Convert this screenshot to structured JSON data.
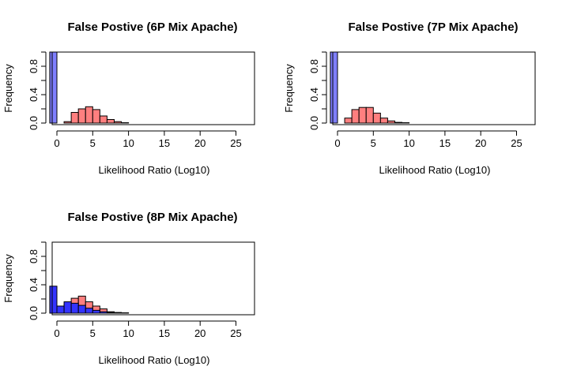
{
  "chart_data": [
    {
      "type": "bar",
      "title": "False Postive (6P Mix Apache)",
      "xlabel": "Likelihood Ratio (Log10)",
      "ylabel": "Frequency",
      "xlim": [
        -1,
        25
      ],
      "ylim": [
        0,
        1
      ],
      "xticks": [
        "0",
        "5",
        "10",
        "15",
        "20",
        "25"
      ],
      "yticks": [
        "0.0",
        "0.4",
        "0.8"
      ],
      "bin_width": 1,
      "series": [
        {
          "color": "#7f7fff",
          "bins": [
            {
              "x0": -1,
              "value": 1.0
            }
          ]
        },
        {
          "color": "#ff7f7f",
          "bins": [
            {
              "x0": 1,
              "value": 0.02
            },
            {
              "x0": 2,
              "value": 0.15
            },
            {
              "x0": 3,
              "value": 0.2
            },
            {
              "x0": 4,
              "value": 0.23
            },
            {
              "x0": 5,
              "value": 0.19
            },
            {
              "x0": 6,
              "value": 0.1
            },
            {
              "x0": 7,
              "value": 0.05
            },
            {
              "x0": 8,
              "value": 0.02
            },
            {
              "x0": 9,
              "value": 0.005
            },
            {
              "x0": 10,
              "value": 0
            },
            {
              "x0": 11,
              "value": 0
            },
            {
              "x0": 12,
              "value": 0
            },
            {
              "x0": 13,
              "value": 0
            },
            {
              "x0": 14,
              "value": 0
            },
            {
              "x0": 15,
              "value": 0
            },
            {
              "x0": 16,
              "value": 0
            },
            {
              "x0": 17,
              "value": 0
            },
            {
              "x0": 18,
              "value": 0
            },
            {
              "x0": 19,
              "value": 0
            },
            {
              "x0": 20,
              "value": 0
            },
            {
              "x0": 21,
              "value": 0
            },
            {
              "x0": 22,
              "value": 0
            },
            {
              "x0": 23,
              "value": 0
            },
            {
              "x0": 24,
              "value": 0
            }
          ]
        }
      ]
    },
    {
      "type": "bar",
      "title": "False Postive (7P Mix Apache)",
      "xlabel": "Likelihood Ratio (Log10)",
      "ylabel": "Frequency",
      "xlim": [
        -1,
        25
      ],
      "ylim": [
        0,
        1
      ],
      "xticks": [
        "0",
        "5",
        "10",
        "15",
        "20",
        "25"
      ],
      "yticks": [
        "0.0",
        "0.4",
        "0.8"
      ],
      "bin_width": 1,
      "series": [
        {
          "color": "#7f7fff",
          "bins": [
            {
              "x0": -1,
              "value": 1.0
            }
          ]
        },
        {
          "color": "#ff7f7f",
          "bins": [
            {
              "x0": 1,
              "value": 0.07
            },
            {
              "x0": 2,
              "value": 0.19
            },
            {
              "x0": 3,
              "value": 0.22
            },
            {
              "x0": 4,
              "value": 0.22
            },
            {
              "x0": 5,
              "value": 0.14
            },
            {
              "x0": 6,
              "value": 0.07
            },
            {
              "x0": 7,
              "value": 0.03
            },
            {
              "x0": 8,
              "value": 0.01
            },
            {
              "x0": 9,
              "value": 0.005
            },
            {
              "x0": 10,
              "value": 0
            },
            {
              "x0": 11,
              "value": 0
            },
            {
              "x0": 12,
              "value": 0
            },
            {
              "x0": 13,
              "value": 0
            },
            {
              "x0": 14,
              "value": 0
            },
            {
              "x0": 15,
              "value": 0
            },
            {
              "x0": 16,
              "value": 0
            },
            {
              "x0": 17,
              "value": 0
            },
            {
              "x0": 18,
              "value": 0
            },
            {
              "x0": 19,
              "value": 0
            },
            {
              "x0": 20,
              "value": 0
            },
            {
              "x0": 21,
              "value": 0
            },
            {
              "x0": 22,
              "value": 0
            },
            {
              "x0": 23,
              "value": 0
            },
            {
              "x0": 24,
              "value": 0
            }
          ]
        }
      ]
    },
    {
      "type": "bar",
      "title": "False Postive (8P Mix Apache)",
      "xlabel": "Likelihood Ratio (Log10)",
      "ylabel": "Frequency",
      "xlim": [
        -1,
        25
      ],
      "ylim": [
        0,
        1
      ],
      "xticks": [
        "0",
        "5",
        "10",
        "15",
        "20",
        "25"
      ],
      "yticks": [
        "0.0",
        "0.4",
        "0.8"
      ],
      "bin_width": 1,
      "series": [
        {
          "color": "#ff7f7f",
          "bins": [
            {
              "x0": 1,
              "value": 0.13
            },
            {
              "x0": 2,
              "value": 0.21
            },
            {
              "x0": 3,
              "value": 0.24
            },
            {
              "x0": 4,
              "value": 0.16
            },
            {
              "x0": 5,
              "value": 0.1
            },
            {
              "x0": 6,
              "value": 0.06
            },
            {
              "x0": 7,
              "value": 0.02
            },
            {
              "x0": 8,
              "value": 0.01
            },
            {
              "x0": 9,
              "value": 0.005
            },
            {
              "x0": 10,
              "value": 0
            },
            {
              "x0": 11,
              "value": 0
            },
            {
              "x0": 12,
              "value": 0
            },
            {
              "x0": 13,
              "value": 0
            },
            {
              "x0": 14,
              "value": 0
            },
            {
              "x0": 15,
              "value": 0
            },
            {
              "x0": 16,
              "value": 0
            },
            {
              "x0": 17,
              "value": 0
            },
            {
              "x0": 18,
              "value": 0
            },
            {
              "x0": 19,
              "value": 0
            },
            {
              "x0": 20,
              "value": 0
            },
            {
              "x0": 21,
              "value": 0
            },
            {
              "x0": 22,
              "value": 0
            },
            {
              "x0": 23,
              "value": 0
            },
            {
              "x0": 24,
              "value": 0
            }
          ]
        },
        {
          "color": "#3333ff",
          "bins": [
            {
              "x0": -1,
              "value": 0.38
            },
            {
              "x0": 0,
              "value": 0.1
            },
            {
              "x0": 1,
              "value": 0.16
            },
            {
              "x0": 2,
              "value": 0.14
            },
            {
              "x0": 3,
              "value": 0.11
            },
            {
              "x0": 4,
              "value": 0.07
            },
            {
              "x0": 5,
              "value": 0.04
            },
            {
              "x0": 6,
              "value": 0.02
            },
            {
              "x0": 7,
              "value": 0.01
            },
            {
              "x0": 8,
              "value": 0.005
            },
            {
              "x0": 9,
              "value": 0
            },
            {
              "x0": 10,
              "value": 0
            },
            {
              "x0": 11,
              "value": 0
            },
            {
              "x0": 12,
              "value": 0
            },
            {
              "x0": 13,
              "value": 0
            },
            {
              "x0": 14,
              "value": 0
            },
            {
              "x0": 15,
              "value": 0
            },
            {
              "x0": 16,
              "value": 0
            },
            {
              "x0": 17,
              "value": 0
            },
            {
              "x0": 18,
              "value": 0
            },
            {
              "x0": 19,
              "value": 0
            },
            {
              "x0": 20,
              "value": 0
            },
            {
              "x0": 21,
              "value": 0
            },
            {
              "x0": 22,
              "value": 0
            },
            {
              "x0": 23,
              "value": 0
            },
            {
              "x0": 24,
              "value": 0
            }
          ]
        }
      ]
    }
  ]
}
